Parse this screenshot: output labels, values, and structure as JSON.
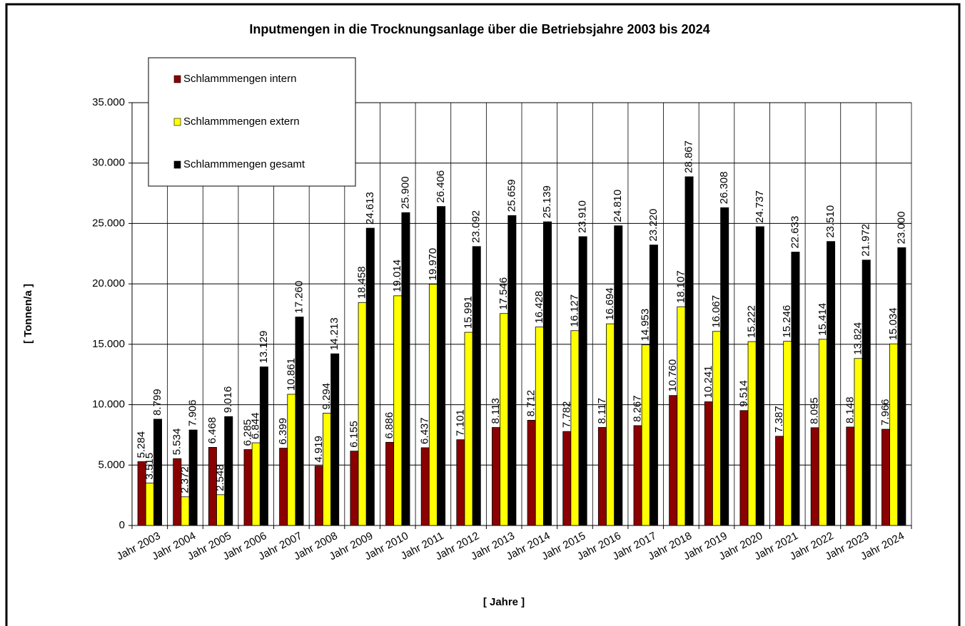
{
  "chart_data": {
    "type": "bar",
    "title": "Inputmengen in die Trocknungsanlage über die Betriebsjahre 2003 bis 2024",
    "x_label": "[ Jahre ]",
    "y_label": "[ Tonnen/a ]",
    "categories": [
      "Jahr 2003",
      "Jahr 2004",
      "Jahr 2005",
      "Jahr 2006",
      "Jahr 2007",
      "Jahr 2008",
      "Jahr 2009",
      "Jahr 2010",
      "Jahr 2011",
      "Jahr 2012",
      "Jahr 2013",
      "Jahr 2014",
      "Jahr 2015",
      "Jahr 2016",
      "Jahr 2017",
      "Jahr 2018",
      "Jahr 2019",
      "Jahr 2020",
      "Jahr 2021",
      "Jahr 2022",
      "Jahr 2023",
      "Jahr 2024"
    ],
    "series": [
      {
        "name": "Schlammmengen intern",
        "color": "#8b0000",
        "values": [
          5284,
          5534,
          6468,
          6285,
          6399,
          4919,
          6155,
          6886,
          6437,
          7101,
          8113,
          8712,
          7782,
          8117,
          8267,
          10760,
          10241,
          9514,
          7387,
          8095,
          8148,
          7966
        ],
        "value_labels": [
          "5.284",
          "5.534",
          "6.468",
          "6.285",
          "6.399",
          "4.919",
          "6.155",
          "6.886",
          "6.437",
          "7.101",
          "8.113",
          "8.712",
          "7.782",
          "8.117",
          "8.267",
          "10.760",
          "10.241",
          "9.514",
          "7.387",
          "8.095",
          "8.148",
          "7.966"
        ]
      },
      {
        "name": "Schlammmengen extern",
        "color": "#ffff00",
        "values": [
          3515,
          2372,
          2548,
          6844,
          10861,
          9294,
          18458,
          19014,
          19970,
          15991,
          17546,
          16428,
          16127,
          16694,
          14953,
          18107,
          16067,
          15222,
          15246,
          15414,
          13824,
          15034
        ],
        "value_labels": [
          "3.515",
          "2.372",
          "2.548",
          "6.844",
          "10.861",
          "9.294",
          "18.458",
          "19.014",
          "19.970",
          "15.991",
          "17.546",
          "16.428",
          "16.127",
          "16.694",
          "14.953",
          "18.107",
          "16.067",
          "15.222",
          "15.246",
          "15.414",
          "13.824",
          "15.034"
        ]
      },
      {
        "name": "Schlammmengen gesamt",
        "color": "#000000",
        "values": [
          8799,
          7906,
          9016,
          13129,
          17260,
          14213,
          24613,
          25900,
          26406,
          23092,
          25659,
          25139,
          23910,
          24810,
          23220,
          28867,
          26308,
          24737,
          22633,
          23510,
          21972,
          23000
        ],
        "value_labels": [
          "8.799",
          "7.906",
          "9.016",
          "13.129",
          "17.260",
          "14.213",
          "24.613",
          "25.900",
          "26.406",
          "23.092",
          "25.659",
          "25.139",
          "23.910",
          "24.810",
          "23.220",
          "28.867",
          "26.308",
          "24.737",
          "22.633",
          "23.510",
          "21.972",
          "23.000"
        ]
      }
    ],
    "ylim": [
      0,
      35000
    ],
    "yticks": [
      0,
      {
        "value": 5000,
        "label": "5.000"
      },
      {
        "value": 10000,
        "label": "10.000"
      },
      {
        "value": 15000,
        "label": "15.000"
      },
      {
        "value": 20000,
        "label": "20.000"
      },
      {
        "value": 25000,
        "label": "25.000"
      },
      {
        "value": 30000,
        "label": "30.000"
      },
      {
        "value": 35000,
        "label": "35.000"
      }
    ],
    "grid": true,
    "legend_position": "upper left"
  }
}
